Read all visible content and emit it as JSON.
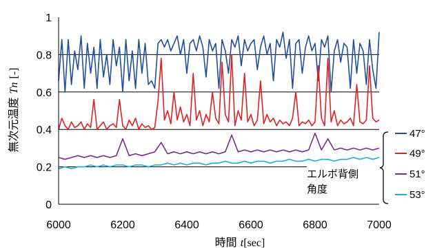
{
  "chart_data": {
    "type": "line",
    "title": "",
    "xlabel_prefix": "時間",
    "xlabel_var": "t",
    "xlabel_unit": "[sec]",
    "ylabel_prefix": "無次元温度",
    "ylabel_var": "Tn",
    "ylabel_unit": "[-]",
    "xlim": [
      6000,
      7000
    ],
    "ylim": [
      0,
      1
    ],
    "x_ticks": [
      "6000",
      "6200",
      "6400",
      "6600",
      "6800",
      "7000"
    ],
    "y_ticks": [
      "0",
      "0.2",
      "0.4",
      "0.6",
      "0.8",
      "1"
    ],
    "grid_y": [
      0.2,
      0.4,
      0.6,
      0.8
    ],
    "legend_position": "right",
    "legend_title": [
      "エルボ背側",
      "角度"
    ],
    "series": [
      {
        "name": "47°",
        "color": "#1f4e9c",
        "x": [
          6000,
          6010,
          6020,
          6030,
          6040,
          6050,
          6060,
          6070,
          6080,
          6090,
          6100,
          6110,
          6120,
          6130,
          6140,
          6150,
          6160,
          6170,
          6180,
          6190,
          6200,
          6210,
          6220,
          6230,
          6240,
          6250,
          6260,
          6270,
          6280,
          6290,
          6300,
          6310,
          6320,
          6330,
          6340,
          6350,
          6360,
          6370,
          6380,
          6390,
          6400,
          6410,
          6420,
          6430,
          6440,
          6450,
          6460,
          6470,
          6480,
          6490,
          6500,
          6510,
          6520,
          6530,
          6540,
          6550,
          6560,
          6570,
          6580,
          6590,
          6600,
          6610,
          6620,
          6630,
          6640,
          6650,
          6660,
          6670,
          6680,
          6690,
          6700,
          6710,
          6720,
          6730,
          6740,
          6750,
          6760,
          6770,
          6780,
          6790,
          6800,
          6810,
          6820,
          6830,
          6840,
          6850,
          6860,
          6870,
          6880,
          6890,
          6900,
          6910,
          6920,
          6930,
          6940,
          6950,
          6960,
          6970,
          6980,
          6990,
          7000
        ],
        "y": [
          0.66,
          0.88,
          0.6,
          0.88,
          0.64,
          0.82,
          0.72,
          0.9,
          0.62,
          0.86,
          0.7,
          0.84,
          0.62,
          0.88,
          0.68,
          0.8,
          0.64,
          0.88,
          0.74,
          0.84,
          0.6,
          0.88,
          0.66,
          0.82,
          0.62,
          0.88,
          0.7,
          0.86,
          0.64,
          0.66,
          0.62,
          0.86,
          0.88,
          0.84,
          0.88,
          0.82,
          0.86,
          0.9,
          0.8,
          0.88,
          0.7,
          0.86,
          0.88,
          0.82,
          0.9,
          0.84,
          0.68,
          0.88,
          0.82,
          0.86,
          0.62,
          0.88,
          0.82,
          0.7,
          0.88,
          0.84,
          0.9,
          0.74,
          0.88,
          0.82,
          0.86,
          0.88,
          0.72,
          0.84,
          0.9,
          0.8,
          0.86,
          0.66,
          0.88,
          0.84,
          0.92,
          0.78,
          0.88,
          0.62,
          0.86,
          0.88,
          0.7,
          0.84,
          0.9,
          0.82,
          0.86,
          0.66,
          0.88,
          0.84,
          0.9,
          0.6,
          0.82,
          0.88,
          0.76,
          0.86,
          0.84,
          0.62,
          0.88,
          0.7,
          0.86,
          0.82,
          0.64,
          0.88,
          0.72,
          0.62,
          0.92
        ]
      },
      {
        "name": "49°",
        "color": "#e02020",
        "x": [
          6000,
          6010,
          6020,
          6030,
          6040,
          6050,
          6060,
          6070,
          6080,
          6090,
          6100,
          6110,
          6120,
          6130,
          6140,
          6150,
          6160,
          6170,
          6180,
          6190,
          6200,
          6210,
          6220,
          6230,
          6240,
          6250,
          6260,
          6270,
          6280,
          6290,
          6300,
          6310,
          6320,
          6330,
          6340,
          6350,
          6360,
          6370,
          6380,
          6390,
          6400,
          6410,
          6420,
          6430,
          6440,
          6450,
          6460,
          6470,
          6480,
          6490,
          6500,
          6510,
          6520,
          6530,
          6540,
          6550,
          6560,
          6570,
          6580,
          6590,
          6600,
          6610,
          6620,
          6630,
          6640,
          6650,
          6660,
          6670,
          6680,
          6690,
          6700,
          6710,
          6720,
          6730,
          6740,
          6750,
          6760,
          6770,
          6780,
          6790,
          6800,
          6810,
          6820,
          6830,
          6840,
          6850,
          6860,
          6870,
          6880,
          6890,
          6900,
          6910,
          6920,
          6930,
          6940,
          6950,
          6960,
          6970,
          6980,
          6990,
          7000
        ],
        "y": [
          0.4,
          0.46,
          0.42,
          0.4,
          0.44,
          0.41,
          0.42,
          0.44,
          0.4,
          0.43,
          0.41,
          0.56,
          0.4,
          0.42,
          0.44,
          0.4,
          0.42,
          0.43,
          0.41,
          0.56,
          0.42,
          0.4,
          0.45,
          0.42,
          0.46,
          0.4,
          0.43,
          0.41,
          0.42,
          0.4,
          0.41,
          0.55,
          0.78,
          0.45,
          0.5,
          0.43,
          0.6,
          0.45,
          0.52,
          0.44,
          0.48,
          0.42,
          0.7,
          0.45,
          0.5,
          0.42,
          0.48,
          0.44,
          0.6,
          0.46,
          0.43,
          0.76,
          0.48,
          0.44,
          0.8,
          0.42,
          0.5,
          0.45,
          0.7,
          0.44,
          0.48,
          0.42,
          0.45,
          0.66,
          0.43,
          0.48,
          0.44,
          0.46,
          0.42,
          0.45,
          0.43,
          0.44,
          0.42,
          0.46,
          0.6,
          0.42,
          0.44,
          0.43,
          0.45,
          0.42,
          0.44,
          0.74,
          0.46,
          0.42,
          0.78,
          0.44,
          0.5,
          0.42,
          0.45,
          0.43,
          0.44,
          0.46,
          0.42,
          0.64,
          0.44,
          0.43,
          0.45,
          0.74,
          0.46,
          0.44,
          0.45
        ]
      },
      {
        "name": "51°",
        "color": "#7a2a8c",
        "x": [
          6000,
          6020,
          6040,
          6060,
          6080,
          6100,
          6120,
          6140,
          6160,
          6180,
          6200,
          6220,
          6240,
          6260,
          6280,
          6300,
          6320,
          6340,
          6360,
          6380,
          6400,
          6420,
          6440,
          6460,
          6480,
          6500,
          6520,
          6540,
          6560,
          6580,
          6600,
          6620,
          6640,
          6660,
          6680,
          6700,
          6720,
          6740,
          6760,
          6780,
          6800,
          6820,
          6840,
          6860,
          6880,
          6900,
          6920,
          6940,
          6960,
          6980,
          7000
        ],
        "y": [
          0.25,
          0.24,
          0.25,
          0.26,
          0.25,
          0.26,
          0.25,
          0.26,
          0.25,
          0.26,
          0.35,
          0.26,
          0.27,
          0.26,
          0.27,
          0.28,
          0.33,
          0.27,
          0.28,
          0.27,
          0.28,
          0.27,
          0.28,
          0.27,
          0.28,
          0.27,
          0.28,
          0.37,
          0.28,
          0.29,
          0.28,
          0.29,
          0.28,
          0.29,
          0.28,
          0.29,
          0.28,
          0.29,
          0.28,
          0.29,
          0.38,
          0.29,
          0.35,
          0.29,
          0.3,
          0.29,
          0.3,
          0.29,
          0.3,
          0.29,
          0.3
        ]
      },
      {
        "name": "53°",
        "color": "#1aaee0",
        "x": [
          6000,
          6020,
          6040,
          6060,
          6080,
          6100,
          6120,
          6140,
          6160,
          6180,
          6200,
          6220,
          6240,
          6260,
          6280,
          6300,
          6320,
          6340,
          6360,
          6380,
          6400,
          6420,
          6440,
          6460,
          6480,
          6500,
          6520,
          6540,
          6560,
          6580,
          6600,
          6620,
          6640,
          6660,
          6680,
          6700,
          6720,
          6740,
          6760,
          6780,
          6800,
          6820,
          6840,
          6860,
          6880,
          6900,
          6920,
          6940,
          6960,
          6980,
          7000
        ],
        "y": [
          0.19,
          0.2,
          0.19,
          0.2,
          0.2,
          0.21,
          0.2,
          0.21,
          0.2,
          0.21,
          0.21,
          0.2,
          0.21,
          0.21,
          0.2,
          0.21,
          0.21,
          0.22,
          0.21,
          0.22,
          0.21,
          0.22,
          0.22,
          0.21,
          0.22,
          0.22,
          0.23,
          0.22,
          0.22,
          0.23,
          0.22,
          0.23,
          0.23,
          0.22,
          0.23,
          0.23,
          0.24,
          0.23,
          0.23,
          0.24,
          0.23,
          0.24,
          0.24,
          0.23,
          0.24,
          0.24,
          0.25,
          0.24,
          0.25,
          0.24,
          0.25
        ]
      }
    ]
  }
}
